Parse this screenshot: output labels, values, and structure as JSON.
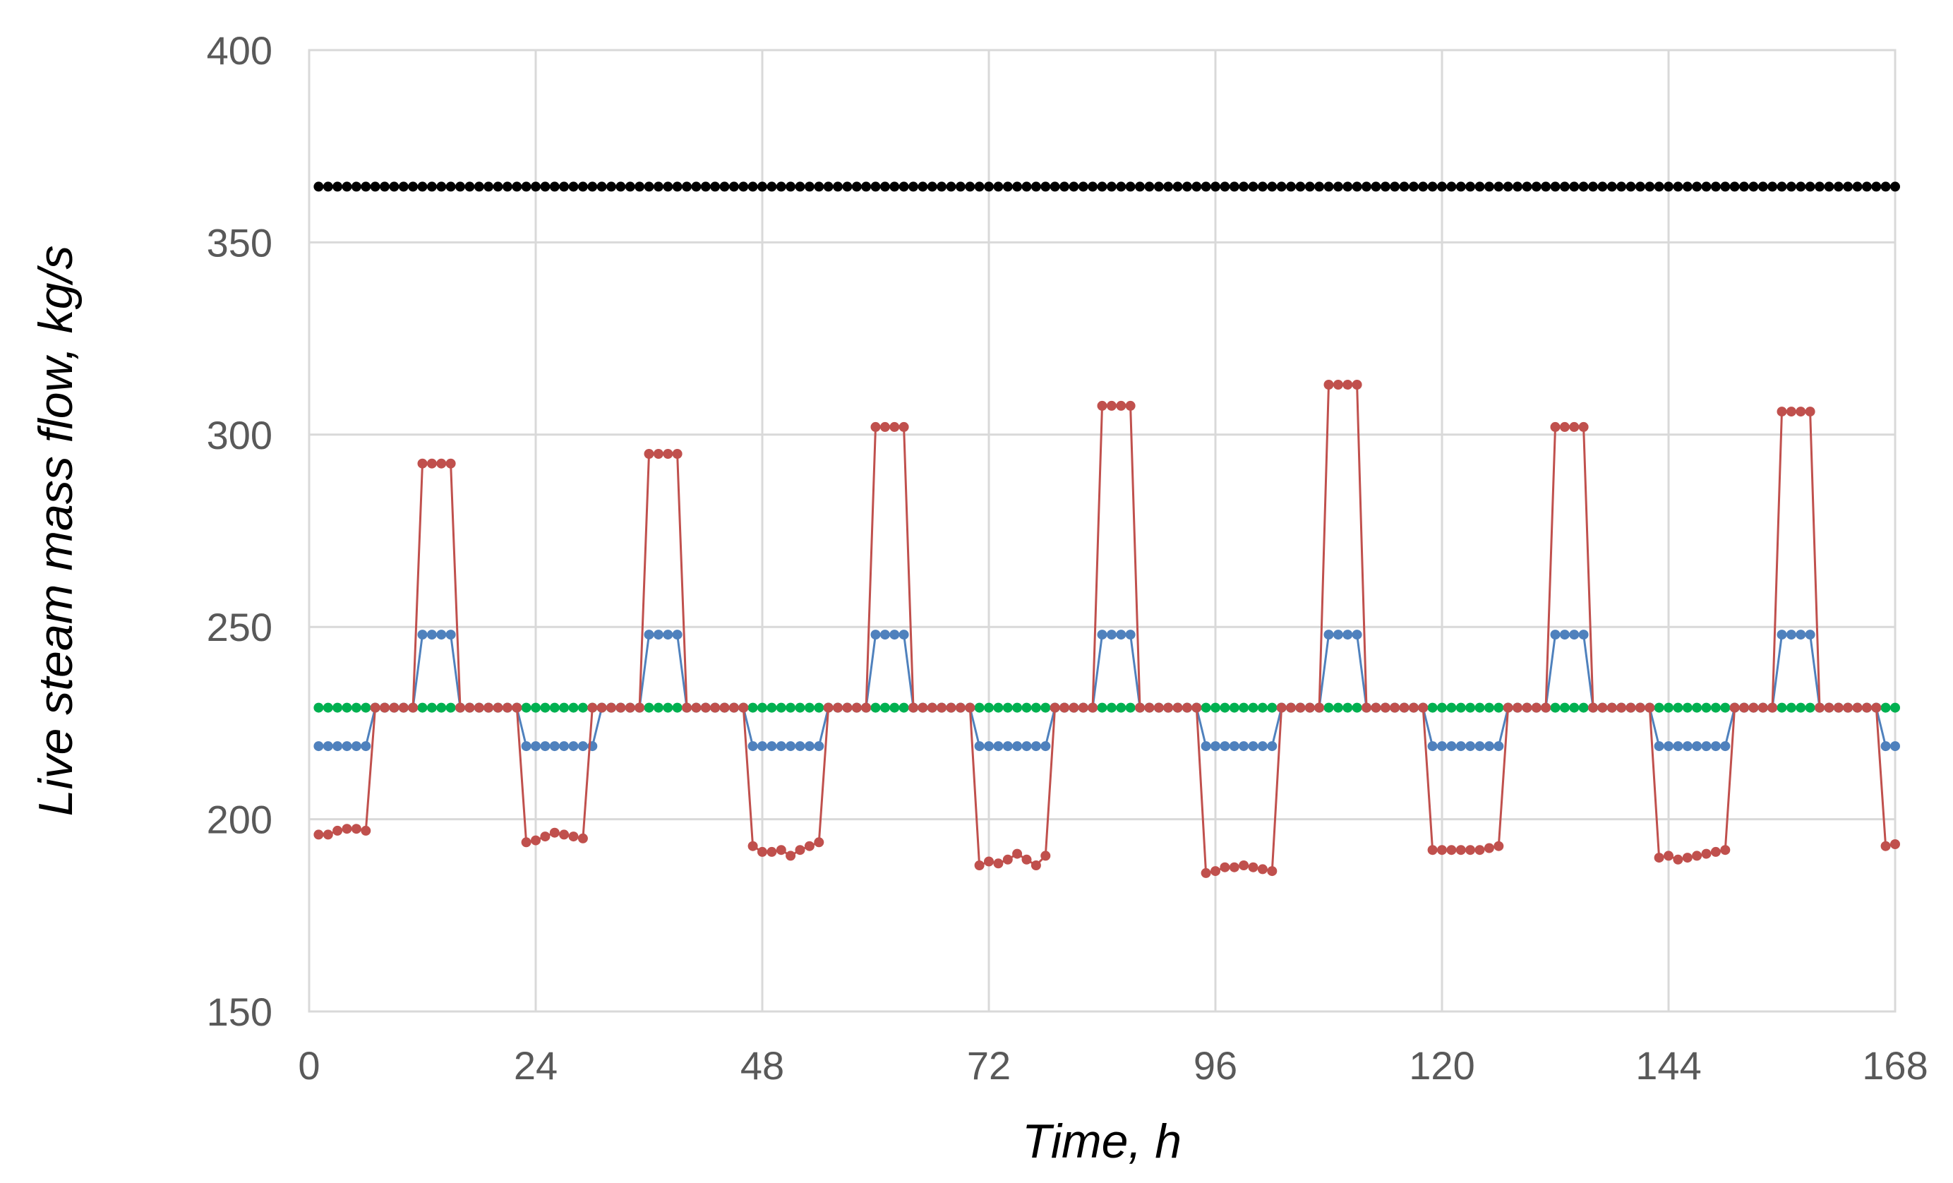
{
  "chart_data": {
    "type": "line",
    "title": "",
    "xlabel": "Time, h",
    "ylabel": "Live steam mass flow, kg/s",
    "xlim": [
      0,
      168
    ],
    "ylim": [
      150,
      400
    ],
    "x_ticks": [
      0,
      24,
      48,
      72,
      96,
      120,
      144,
      168
    ],
    "y_ticks": [
      150,
      200,
      250,
      300,
      350,
      400
    ],
    "grid": true,
    "legend": "none",
    "x_start": 1,
    "x_step": 1,
    "series": [
      {
        "color": "#000000",
        "marker": "circle",
        "constant": 364.5
      },
      {
        "color": "#00b050",
        "marker": "circle",
        "constant": 229
      },
      {
        "color": "#4f81bd",
        "marker": "circle",
        "values": [
          219,
          219,
          219,
          219,
          219,
          219,
          229,
          229,
          229,
          229,
          229,
          248,
          248,
          248,
          248,
          229,
          229,
          229,
          229,
          229,
          229,
          229,
          219,
          219,
          219,
          219,
          219,
          219,
          219,
          219,
          229,
          229,
          229,
          229,
          229,
          248,
          248,
          248,
          248,
          229,
          229,
          229,
          229,
          229,
          229,
          229,
          219,
          219,
          219,
          219,
          219,
          219,
          219,
          219,
          229,
          229,
          229,
          229,
          229,
          248,
          248,
          248,
          248,
          229,
          229,
          229,
          229,
          229,
          229,
          229,
          219,
          219,
          219,
          219,
          219,
          219,
          219,
          219,
          229,
          229,
          229,
          229,
          229,
          248,
          248,
          248,
          248,
          229,
          229,
          229,
          229,
          229,
          229,
          229,
          219,
          219,
          219,
          219,
          219,
          219,
          219,
          219,
          229,
          229,
          229,
          229,
          229,
          248,
          248,
          248,
          248,
          229,
          229,
          229,
          229,
          229,
          229,
          229,
          219,
          219,
          219,
          219,
          219,
          219,
          219,
          219,
          229,
          229,
          229,
          229,
          229,
          248,
          248,
          248,
          248,
          229,
          229,
          229,
          229,
          229,
          229,
          229,
          219,
          219,
          219,
          219,
          219,
          219,
          219,
          219,
          229,
          229,
          229,
          229,
          229,
          248,
          248,
          248,
          248,
          229,
          229,
          229,
          229,
          229,
          229,
          229,
          219,
          219
        ]
      },
      {
        "color": "#c0504d",
        "marker": "circle",
        "values": [
          196,
          196,
          197,
          197.5,
          197.5,
          197,
          229,
          229,
          229,
          229,
          229,
          292.5,
          292.5,
          292.5,
          292.5,
          229,
          229,
          229,
          229,
          229,
          229,
          229,
          194,
          194.5,
          195.5,
          196.5,
          196,
          195.5,
          195,
          229,
          229,
          229,
          229,
          229,
          229,
          295,
          295,
          295,
          295,
          229,
          229,
          229,
          229,
          229,
          229,
          229,
          193,
          191.5,
          191.5,
          192,
          190.5,
          192,
          193,
          194,
          229,
          229,
          229,
          229,
          229,
          302,
          302,
          302,
          302,
          229,
          229,
          229,
          229,
          229,
          229,
          229,
          188,
          189,
          188.5,
          189.5,
          191,
          189.5,
          188,
          190.5,
          229,
          229,
          229,
          229,
          229,
          307.5,
          307.5,
          307.5,
          307.5,
          229,
          229,
          229,
          229,
          229,
          229,
          229,
          186,
          186.5,
          187.5,
          187.5,
          188,
          187.5,
          187,
          186.5,
          229,
          229,
          229,
          229,
          229,
          313,
          313,
          313,
          313,
          229,
          229,
          229,
          229,
          229,
          229,
          229,
          192,
          192,
          192,
          192,
          192,
          192,
          192.5,
          193,
          229,
          229,
          229,
          229,
          229,
          302,
          302,
          302,
          302,
          229,
          229,
          229,
          229,
          229,
          229,
          229,
          190,
          190.5,
          189.5,
          190,
          190.5,
          191,
          191.5,
          192,
          229,
          229,
          229,
          229,
          229,
          306,
          306,
          306,
          306,
          229,
          229,
          229,
          229,
          229,
          229,
          229,
          193,
          193.5
        ]
      }
    ]
  }
}
